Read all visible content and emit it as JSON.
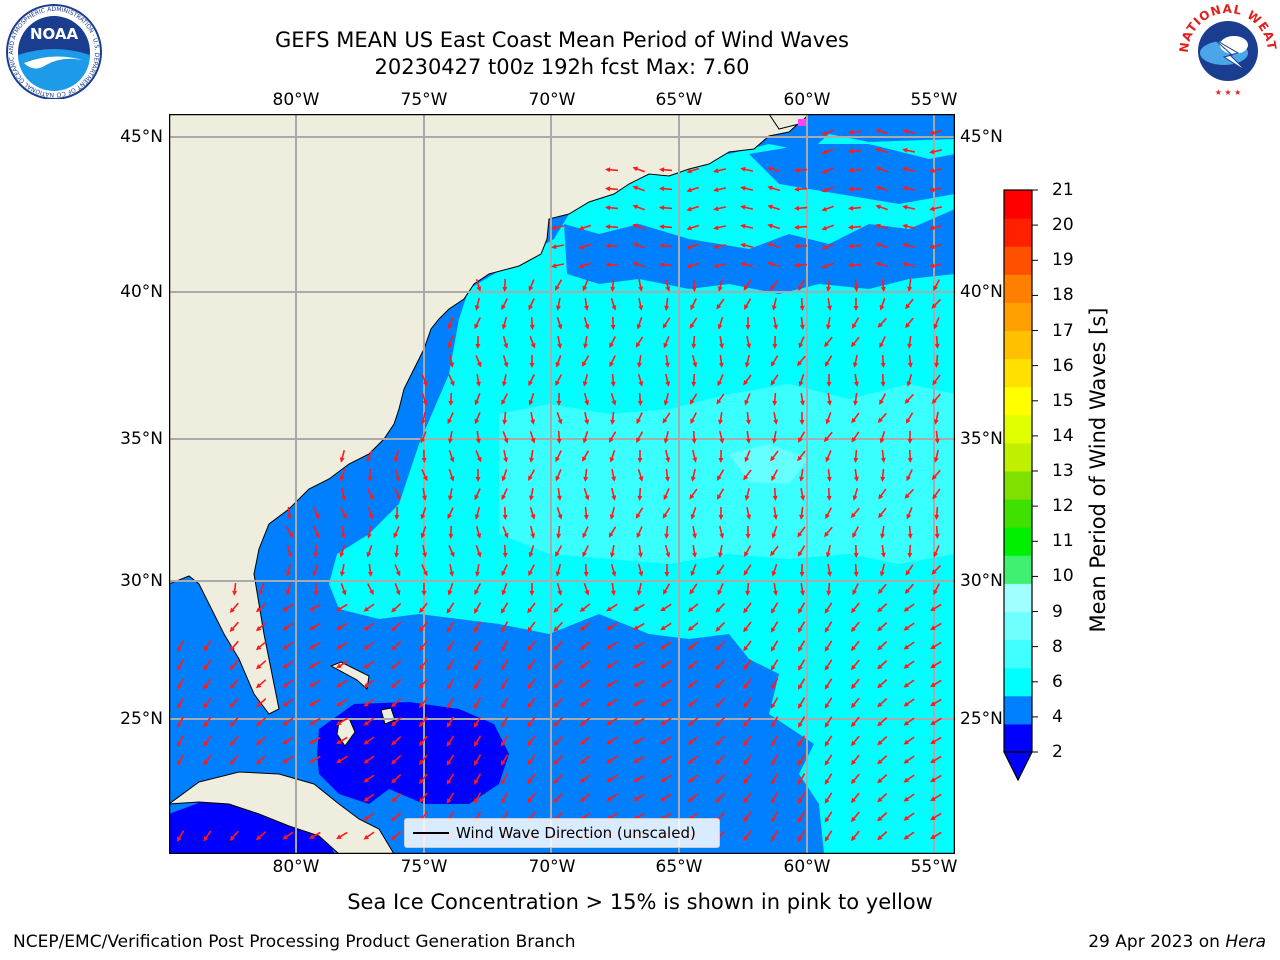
{
  "title": {
    "line1": "GEFS MEAN US East Coast Mean Period of Wind Waves",
    "line2": "20230427 t00z 192h fcst   Max: 7.60"
  },
  "map": {
    "lon_range": [
      -85,
      -54.3
    ],
    "lat_range": [
      20.5,
      46
    ],
    "lon_ticks": [
      "80°W",
      "75°W",
      "70°W",
      "65°W",
      "60°W",
      "55°W"
    ],
    "lat_ticks": [
      "45°N",
      "40°N",
      "35°N",
      "30°N",
      "25°N"
    ],
    "grid": true,
    "land_color": "#efedde",
    "arrow_color": "#ff1a1a"
  },
  "colorbar": {
    "label": "Mean Period of Wind Waves [s]",
    "ticks": [
      "21",
      "20",
      "19",
      "18",
      "17",
      "16",
      "15",
      "14",
      "13",
      "12",
      "11",
      "10",
      "9",
      "8",
      "6",
      "4",
      "2"
    ],
    "colors": [
      "#0000ff",
      "#0080ff",
      "#00ffff",
      "#40ffff",
      "#70ffff",
      "#a0ffff",
      "#40f070",
      "#00f000",
      "#40e000",
      "#80e000",
      "#c0f000",
      "#e0ff00",
      "#ffff00",
      "#ffe000",
      "#ffc000",
      "#ffa000",
      "#ff8000",
      "#ff5000",
      "#ff2000",
      "#ff0000"
    ],
    "extend": "min"
  },
  "legend": {
    "label": "Wind Wave Direction (unscaled)"
  },
  "note": "Sea Ice Concentration > 15% is shown in pink to yellow",
  "footer": {
    "left": "NCEP/EMC/Verification Post Processing Product Generation Branch",
    "date": "29 Apr 2023 on ",
    "machine": "Hera"
  },
  "logos": {
    "noaa": "NOAA",
    "noaa_ring": "NATIONAL OCEANIC AND ATMOSPHERIC ADMINISTRATION · U.S. DEPARTMENT OF COMMERCE",
    "nws_ring": "NATIONAL WEATHER SERVICE"
  }
}
